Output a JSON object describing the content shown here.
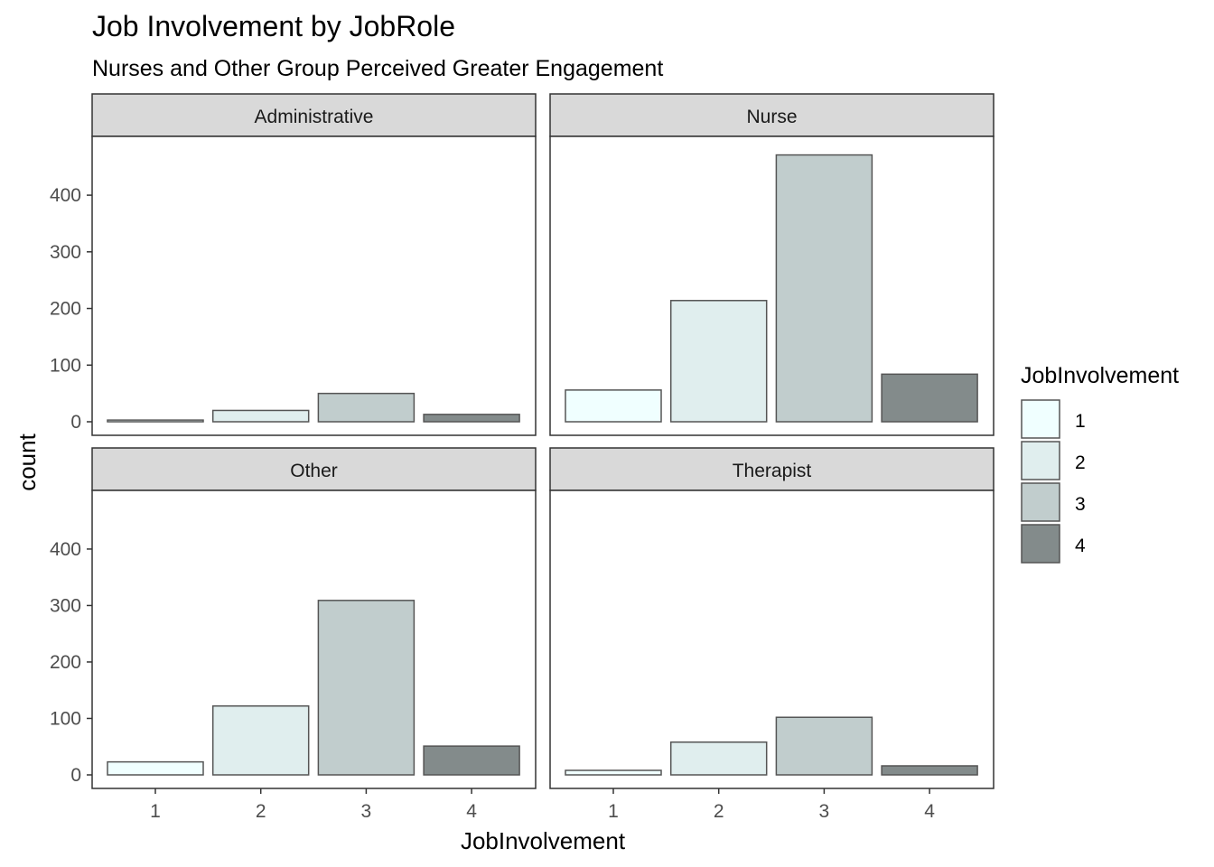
{
  "chart_data": {
    "type": "bar",
    "title": "Job Involvement by JobRole",
    "subtitle": "Nurses and Other Group Perceived Greater Engagement",
    "xlabel": "JobInvolvement",
    "ylabel": "count",
    "categories": [
      "1",
      "2",
      "3",
      "4"
    ],
    "ylim": [
      0,
      500
    ],
    "yticks": [
      0,
      100,
      200,
      300,
      400
    ],
    "grid": false,
    "legend": {
      "title": "JobInvolvement",
      "position": "right",
      "entries": [
        "1",
        "2",
        "3",
        "4"
      ]
    },
    "colors": [
      "#F0FFFF",
      "#E0EEEE",
      "#C1CDCD",
      "#838B8B"
    ],
    "facets": [
      {
        "label": "Administrative",
        "values": [
          3,
          20,
          50,
          13
        ]
      },
      {
        "label": "Nurse",
        "values": [
          56,
          214,
          471,
          84
        ]
      },
      {
        "label": "Other",
        "values": [
          23,
          122,
          309,
          51
        ]
      },
      {
        "label": "Therapist",
        "values": [
          8,
          58,
          102,
          16
        ]
      }
    ]
  }
}
